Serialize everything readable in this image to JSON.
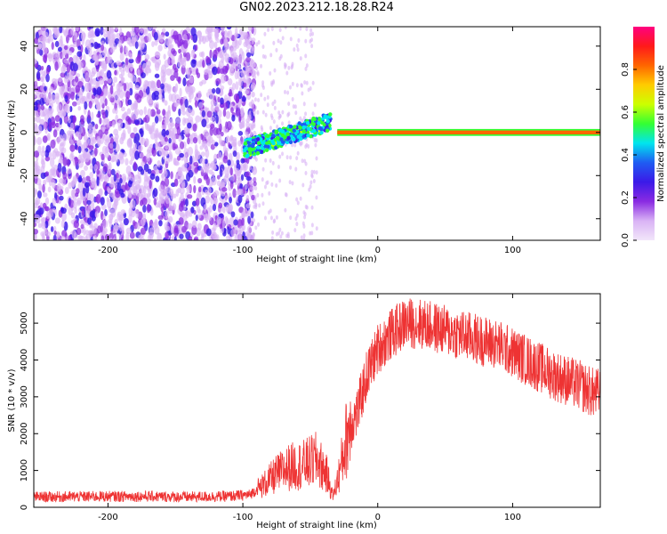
{
  "title": "GN02.2023.212.18.28.R24",
  "chart_data": [
    {
      "type": "heatmap",
      "xlabel": "Height of straight line (km)",
      "ylabel": "Frequency (Hz)",
      "xlim": [
        -255,
        165
      ],
      "ylim": [
        -50,
        49
      ],
      "xticks": [
        -200,
        -100,
        0,
        100
      ],
      "yticks": [
        -40,
        -20,
        0,
        20,
        40
      ],
      "colorbar": {
        "label": "Normalized spectral amplitude",
        "range": [
          0.0,
          1.0
        ],
        "ticks": [
          0.0,
          0.2,
          0.4,
          0.6,
          0.8
        ],
        "colors": [
          "#f2e6fa",
          "#d9b3f5",
          "#8a2be2",
          "#3b1ae8",
          "#1f5cf2",
          "#00e5ee",
          "#33ff33",
          "#ccff00",
          "#ffcc00",
          "#ff6600",
          "#ff1a1a",
          "#ff0080"
        ]
      },
      "regions": [
        {
          "name": "noise",
          "x_range": [
            -255,
            -95
          ],
          "freq_range": [
            -50,
            49
          ],
          "amplitude": [
            0.05,
            0.3
          ]
        },
        {
          "name": "rising_trace",
          "x_range": [
            -100,
            -35
          ],
          "freq_start": -8,
          "freq_end": 5,
          "amplitude": [
            0.3,
            0.6
          ]
        },
        {
          "name": "steady_line",
          "x_range": [
            -30,
            165
          ],
          "freq": 0,
          "amplitude": 0.8
        }
      ]
    },
    {
      "type": "line",
      "xlabel": "Height of straight line (km)",
      "ylabel": "SNR (10 * v/v)",
      "xlim": [
        -255,
        165
      ],
      "ylim": [
        0,
        5800
      ],
      "xticks": [
        -200,
        -100,
        0,
        100
      ],
      "yticks": [
        0,
        1000,
        2000,
        3000,
        4000,
        5000
      ],
      "color": "#ee3333",
      "series": [
        {
          "x": [
            -255,
            -220,
            -180,
            -140,
            -110,
            -95,
            -85,
            -75,
            -65,
            -55,
            -45,
            -38,
            -33,
            -28,
            -22,
            -15,
            -8,
            0,
            10,
            20,
            30,
            40,
            50,
            60,
            70,
            80,
            90,
            100,
            110,
            120,
            130,
            140,
            150,
            160,
            165
          ],
          "y": [
            280,
            290,
            300,
            280,
            300,
            340,
            600,
            900,
            1100,
            1150,
            1300,
            900,
            300,
            1000,
            2100,
            2600,
            3600,
            4300,
            4700,
            5000,
            5000,
            4900,
            4800,
            4700,
            4600,
            4500,
            4400,
            4200,
            4000,
            3800,
            3600,
            3450,
            3300,
            3100,
            3100
          ]
        }
      ]
    }
  ]
}
